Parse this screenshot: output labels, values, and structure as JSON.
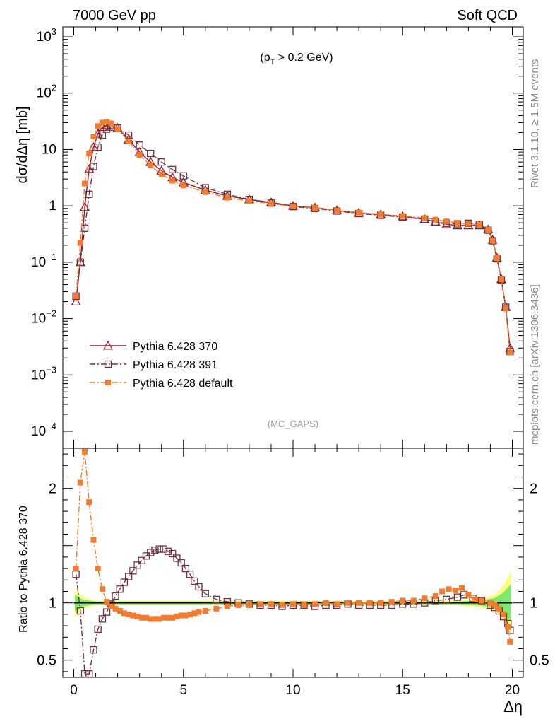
{
  "header": {
    "left": "7000 GeV pp",
    "right": "Soft QCD"
  },
  "side_labels": {
    "rivet": "Rivet 3.1.10, ≥ 1.5M events",
    "mcplots": "mcplots.cern.ch [arXiv:1306.3436]"
  },
  "chart_data": [
    {
      "type": "line",
      "panel": "main",
      "title": "",
      "annotation": "(p_T > 0.2 GeV)",
      "analysis_tag": "(MC_GAPS)",
      "xlabel": "Δη",
      "ylabel": "dσ/dΔη [mb]",
      "xlim": [
        -0.5,
        20.5
      ],
      "ylim": [
        5e-05,
        1500
      ],
      "yscale": "log",
      "legend_position": "lower-left",
      "series": [
        {
          "name": "Pythia 6.428 370",
          "color": "#9a1a2a",
          "marker": "open-triangle",
          "linestyle": "solid",
          "x": [
            0.1,
            0.3,
            0.5,
            0.7,
            0.9,
            1.1,
            1.3,
            1.5,
            1.7,
            2.0,
            2.5,
            3.0,
            3.5,
            4.0,
            4.5,
            5.0,
            6.0,
            7.0,
            8.0,
            9.0,
            10.0,
            11.0,
            12.0,
            13.0,
            14.0,
            15.0,
            16.0,
            16.5,
            17.0,
            17.5,
            18.0,
            18.5,
            18.9,
            19.1,
            19.3,
            19.5,
            19.7,
            19.9
          ],
          "y": [
            0.02,
            0.1,
            0.95,
            4.5,
            11,
            19,
            25,
            27,
            27,
            24,
            15,
            9,
            6,
            4.2,
            3.2,
            2.6,
            1.9,
            1.5,
            1.3,
            1.15,
            1.0,
            0.93,
            0.83,
            0.75,
            0.7,
            0.65,
            0.58,
            0.52,
            0.47,
            0.45,
            0.45,
            0.45,
            0.38,
            0.25,
            0.12,
            0.05,
            0.016,
            0.003
          ]
        },
        {
          "name": "Pythia 6.428 391",
          "color": "#6e3340",
          "marker": "open-square",
          "linestyle": "dash-dot",
          "x": [
            0.1,
            0.3,
            0.5,
            0.7,
            0.9,
            1.1,
            1.3,
            1.5,
            1.7,
            2.0,
            2.5,
            3.0,
            3.5,
            4.0,
            4.5,
            5.0,
            6.0,
            7.0,
            8.0,
            9.0,
            10.0,
            11.0,
            12.0,
            13.0,
            14.0,
            15.0,
            16.0,
            16.5,
            17.0,
            17.5,
            18.0,
            18.5,
            18.9,
            19.1,
            19.3,
            19.5,
            19.7,
            19.9
          ],
          "y": [
            0.025,
            0.1,
            0.4,
            1.6,
            5,
            11,
            18,
            23,
            25,
            24,
            18,
            12,
            8.5,
            6,
            4.4,
            3.4,
            2.1,
            1.6,
            1.3,
            1.12,
            0.97,
            0.9,
            0.81,
            0.73,
            0.68,
            0.63,
            0.58,
            0.52,
            0.49,
            0.48,
            0.49,
            0.47,
            0.37,
            0.24,
            0.115,
            0.048,
            0.016,
            0.0026
          ]
        },
        {
          "name": "Pythia 6.428 default",
          "color": "#f47b2b",
          "marker": "filled-square",
          "linestyle": "dash-dot",
          "x": [
            0.1,
            0.3,
            0.5,
            0.7,
            0.9,
            1.1,
            1.3,
            1.5,
            1.7,
            2.0,
            2.5,
            3.0,
            3.5,
            4.0,
            4.5,
            5.0,
            6.0,
            7.0,
            8.0,
            9.0,
            10.0,
            11.0,
            12.0,
            13.0,
            14.0,
            15.0,
            16.0,
            16.5,
            17.0,
            17.5,
            18.0,
            18.5,
            18.9,
            19.1,
            19.3,
            19.5,
            19.7,
            19.9
          ],
          "y": [
            0.025,
            0.22,
            2.5,
            8.5,
            17,
            26,
            30,
            31,
            29,
            23,
            14,
            8,
            5.2,
            3.6,
            2.8,
            2.3,
            1.75,
            1.4,
            1.22,
            1.1,
            0.98,
            0.92,
            0.83,
            0.76,
            0.71,
            0.66,
            0.61,
            0.57,
            0.53,
            0.5,
            0.48,
            0.46,
            0.38,
            0.24,
            0.12,
            0.05,
            0.015,
            0.0025
          ]
        }
      ]
    },
    {
      "type": "line",
      "panel": "ratio",
      "xlabel": "Δη",
      "ylabel": "Ratio to Pythia 6.428 370",
      "xlim": [
        -0.5,
        20.5
      ],
      "ylim": [
        0.35,
        2.35
      ],
      "yscale": "linear",
      "reference_line": 1,
      "band_colors": {
        "inner": "#7fe86f",
        "outer": "#fdfd7a"
      },
      "series": [
        {
          "name": "Pythia 6.428 391",
          "color": "#6e3340",
          "marker": "open-square",
          "linestyle": "dash-dot",
          "x": [
            0.1,
            0.3,
            0.5,
            0.7,
            0.9,
            1.1,
            1.3,
            1.5,
            1.7,
            1.9,
            2.1,
            2.3,
            2.5,
            2.7,
            2.9,
            3.1,
            3.3,
            3.5,
            3.7,
            3.9,
            4.1,
            4.3,
            4.5,
            4.7,
            4.9,
            5.1,
            5.3,
            5.5,
            5.7,
            6.0,
            6.5,
            7.0,
            7.5,
            8.0,
            8.5,
            9.0,
            9.5,
            10.0,
            10.5,
            11.0,
            11.5,
            12.0,
            12.5,
            13.0,
            13.5,
            14.0,
            14.5,
            15.0,
            15.5,
            16.0,
            16.5,
            17.0,
            17.5,
            17.8,
            18.2,
            18.6,
            19.0,
            19.2,
            19.4,
            19.6,
            19.8,
            19.9
          ],
          "y": [
            1.25,
            0.93,
            0.38,
            0.38,
            0.59,
            0.77,
            0.86,
            0.92,
            0.99,
            1.06,
            1.12,
            1.18,
            1.23,
            1.28,
            1.33,
            1.37,
            1.41,
            1.44,
            1.46,
            1.47,
            1.47,
            1.45,
            1.43,
            1.39,
            1.35,
            1.3,
            1.25,
            1.19,
            1.14,
            1.08,
            1.03,
            1.01,
            1.0,
            0.99,
            0.98,
            0.98,
            0.97,
            0.98,
            0.98,
            0.97,
            0.98,
            0.98,
            0.99,
            0.98,
            0.98,
            0.98,
            0.98,
            0.99,
            0.99,
            1.0,
            1.02,
            1.03,
            1.05,
            1.07,
            1.04,
            1.02,
            0.98,
            0.96,
            0.93,
            0.88,
            0.82,
            0.76
          ]
        },
        {
          "name": "Pythia 6.428 default",
          "color": "#f47b2b",
          "marker": "filled-square",
          "linestyle": "dash-dot",
          "x": [
            0.1,
            0.3,
            0.5,
            0.7,
            0.9,
            1.1,
            1.3,
            1.5,
            1.7,
            1.9,
            2.1,
            2.3,
            2.5,
            2.7,
            2.9,
            3.1,
            3.3,
            3.5,
            3.7,
            3.9,
            4.1,
            4.3,
            4.5,
            4.7,
            4.9,
            5.1,
            5.3,
            5.5,
            5.7,
            6.0,
            6.5,
            7.0,
            7.5,
            8.0,
            8.5,
            9.0,
            9.5,
            10.0,
            10.5,
            11.0,
            11.5,
            12.0,
            12.5,
            13.0,
            13.5,
            14.0,
            14.5,
            15.0,
            15.5,
            16.0,
            16.5,
            16.8,
            17.1,
            17.4,
            17.7,
            18.0,
            18.3,
            18.6,
            19.0,
            19.2,
            19.4,
            19.6,
            19.8,
            19.9
          ],
          "y": [
            1.3,
            2.05,
            2.32,
            1.88,
            1.55,
            1.3,
            1.12,
            1.01,
            0.97,
            0.95,
            0.93,
            0.91,
            0.9,
            0.89,
            0.88,
            0.87,
            0.87,
            0.86,
            0.86,
            0.86,
            0.87,
            0.87,
            0.87,
            0.88,
            0.89,
            0.89,
            0.9,
            0.91,
            0.92,
            0.93,
            0.95,
            0.97,
            0.98,
            0.98,
            0.99,
            0.99,
            0.98,
            0.99,
            0.98,
            0.99,
            1.0,
            0.99,
            1.0,
            1.0,
            1.0,
            1.0,
            1.01,
            1.02,
            1.02,
            1.04,
            1.06,
            1.1,
            1.12,
            1.11,
            1.13,
            1.07,
            1.03,
            1.02,
            1.0,
            0.98,
            0.95,
            0.9,
            0.79,
            0.66
          ]
        }
      ]
    }
  ],
  "axes": {
    "x_ticks": [
      "0",
      "5",
      "10",
      "15",
      "20"
    ],
    "main_y_ticks": [
      "10^-4",
      "10^-3",
      "10^-2",
      "10^-1",
      "1",
      "10",
      "10^2",
      "10^3"
    ],
    "ratio_y_ticks": [
      "0.5",
      "1",
      "2"
    ]
  }
}
